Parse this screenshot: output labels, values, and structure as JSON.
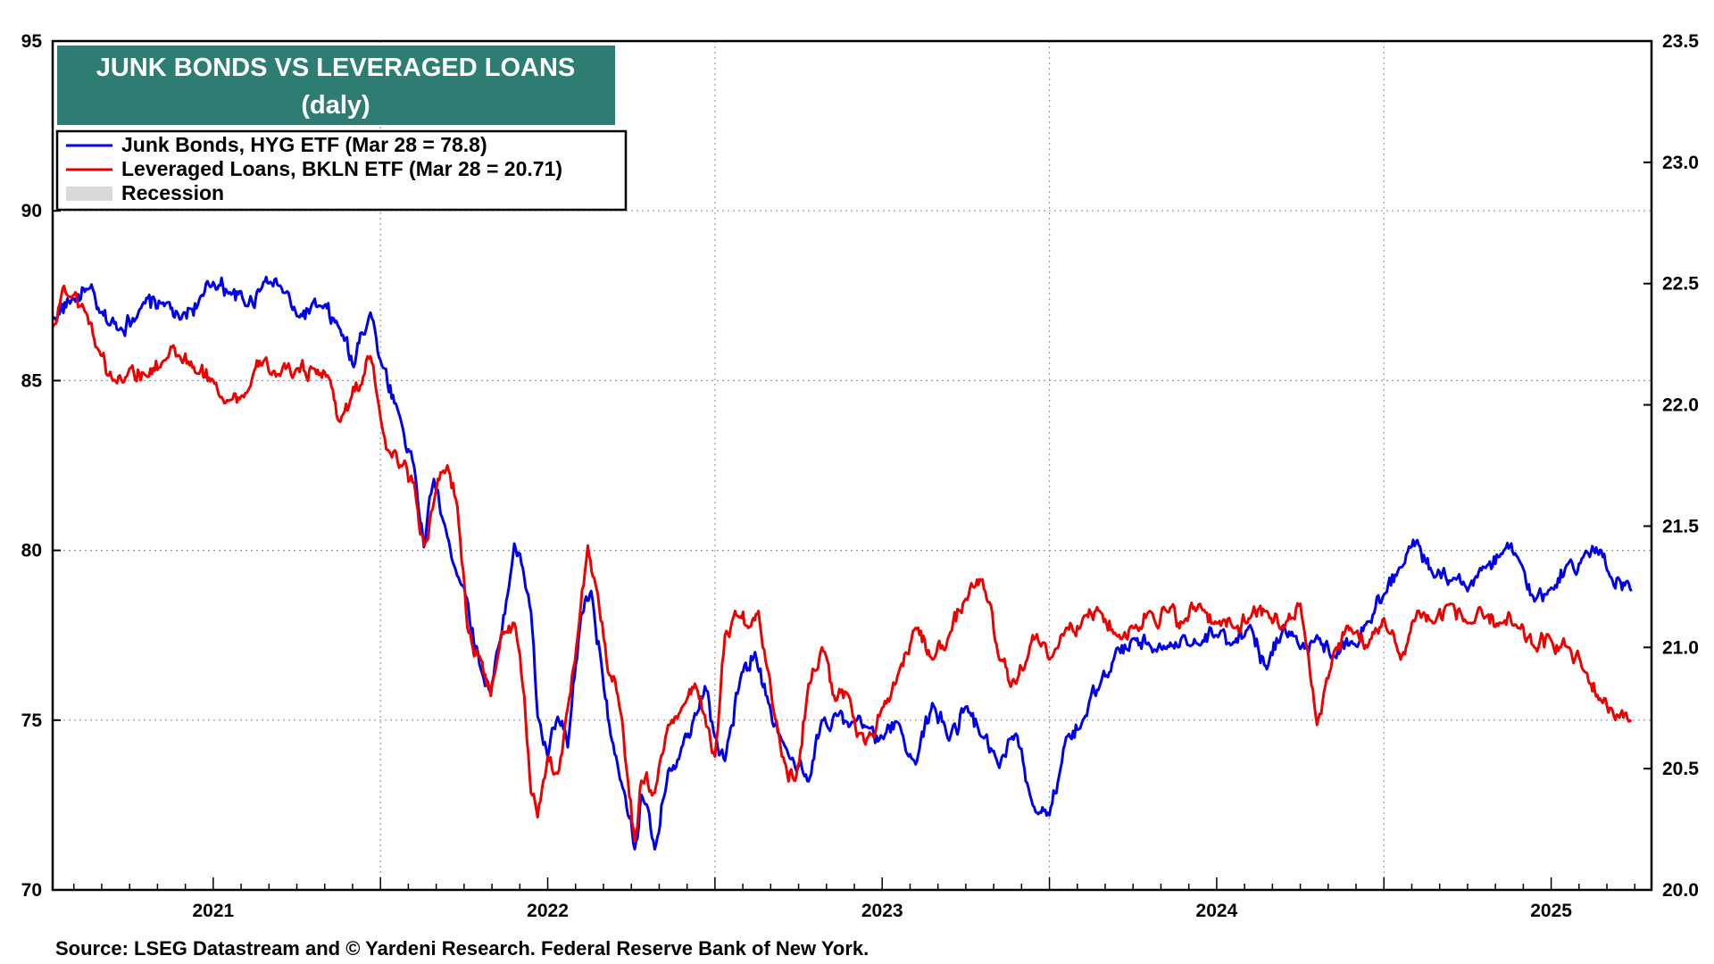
{
  "chart_data": {
    "type": "line",
    "title": "JUNK BONDS VS LEVERAGED LOANS",
    "subtitle": "(daly)",
    "source": "Source: LSEG Datastream and © Yardeni Research. Federal Reserve Bank of New York.",
    "x_range": [
      2020.52,
      2025.3
    ],
    "x_ticks": [
      {
        "label": "2021",
        "value": 2021.0
      },
      {
        "label": "2022",
        "value": 2022.0
      },
      {
        "label": "2023",
        "value": 2023.0
      },
      {
        "label": "2024",
        "value": 2024.0
      },
      {
        "label": "2025",
        "value": 2025.0
      }
    ],
    "y_left": {
      "range": [
        70,
        95
      ],
      "ticks": [
        "70",
        "75",
        "80",
        "85",
        "90",
        "95"
      ]
    },
    "y_right": {
      "range": [
        20.0,
        23.5
      ],
      "ticks": [
        "20.0",
        "20.5",
        "21.0",
        "21.5",
        "22.0",
        "22.5",
        "23.0",
        "23.5"
      ]
    },
    "grid": true,
    "legend_position": "top-left",
    "legend": [
      {
        "label": "Junk Bonds, HYG ETF (Mar 28 = 78.8)",
        "color": "#0000ee",
        "kind": "line"
      },
      {
        "label": "Leveraged Loans, BKLN ETF (Mar 28 = 20.71)",
        "color": "#ee0000",
        "kind": "line"
      },
      {
        "label": "Recession",
        "color": "#d9d9d9",
        "kind": "box"
      }
    ],
    "series": [
      {
        "name": "Junk Bonds, HYG ETF",
        "axis": "left",
        "color": "#0000ee",
        "x": [
          2020.52,
          2020.58,
          2020.62,
          2020.66,
          2020.72,
          2020.78,
          2020.85,
          2020.9,
          2020.97,
          2021.0,
          2021.05,
          2021.1,
          2021.15,
          2021.2,
          2021.25,
          2021.32,
          2021.38,
          2021.42,
          2021.44,
          2021.47,
          2021.5,
          2021.55,
          2021.6,
          2021.63,
          2021.66,
          2021.7,
          2021.75,
          2021.8,
          2021.83,
          2021.86,
          2021.9,
          2021.93,
          2021.95,
          2021.97,
          2022.0,
          2022.03,
          2022.06,
          2022.1,
          2022.13,
          2022.16,
          2022.2,
          2022.24,
          2022.26,
          2022.28,
          2022.32,
          2022.36,
          2022.4,
          2022.44,
          2022.47,
          2022.5,
          2022.53,
          2022.58,
          2022.62,
          2022.66,
          2022.7,
          2022.74,
          2022.78,
          2022.82,
          2022.86,
          2022.9,
          2022.95,
          2023.0,
          2023.05,
          2023.1,
          2023.15,
          2023.2,
          2023.25,
          2023.3,
          2023.35,
          2023.4,
          2023.45,
          2023.5,
          2023.55,
          2023.6,
          2023.65,
          2023.7,
          2023.75,
          2023.8,
          2023.85,
          2023.9,
          2023.95,
          2024.0,
          2024.05,
          2024.1,
          2024.15,
          2024.2,
          2024.25,
          2024.3,
          2024.35,
          2024.4,
          2024.45,
          2024.5,
          2024.55,
          2024.6,
          2024.65,
          2024.7,
          2024.75,
          2024.8,
          2024.85,
          2024.9,
          2024.95,
          2025.0,
          2025.05,
          2025.1,
          2025.15,
          2025.18,
          2025.2,
          2025.24
        ],
        "y": [
          86.8,
          87.4,
          87.7,
          87.0,
          86.5,
          87.1,
          87.3,
          86.8,
          87.5,
          87.9,
          87.6,
          87.2,
          87.9,
          87.8,
          86.9,
          87.2,
          86.5,
          85.4,
          86.4,
          87.0,
          85.6,
          84.2,
          82.5,
          80.1,
          82.1,
          80.4,
          78.9,
          76.5,
          75.9,
          77.4,
          80.2,
          79.2,
          78.2,
          75.1,
          73.9,
          75.1,
          74.2,
          78.1,
          78.8,
          76.7,
          74.0,
          72.2,
          71.2,
          72.8,
          71.2,
          73.5,
          74.2,
          75.2,
          76.0,
          74.5,
          73.8,
          76.4,
          77.0,
          75.5,
          74.4,
          73.6,
          73.2,
          75.0,
          75.2,
          74.8,
          74.8,
          74.5,
          74.9,
          73.7,
          75.5,
          74.4,
          75.4,
          74.5,
          73.6,
          74.6,
          72.5,
          72.2,
          74.5,
          75.0,
          76.0,
          77.1,
          77.4,
          77.2,
          77.1,
          77.5,
          77.2,
          77.5,
          77.3,
          77.8,
          76.5,
          77.8,
          77.1,
          77.5,
          76.9,
          77.3,
          77.9,
          78.7,
          79.5,
          80.3,
          79.2,
          79.1,
          78.8,
          79.5,
          79.9,
          79.8,
          78.5,
          78.9,
          79.6,
          79.9,
          80.0,
          79.2,
          79.2,
          78.8
        ]
      },
      {
        "name": "Leveraged Loans, BKLN ETF",
        "axis": "right",
        "color": "#ee0000",
        "x": [
          2020.52,
          2020.55,
          2020.58,
          2020.62,
          2020.66,
          2020.7,
          2020.75,
          2020.8,
          2020.85,
          2020.9,
          2020.95,
          2021.0,
          2021.05,
          2021.1,
          2021.15,
          2021.2,
          2021.25,
          2021.3,
          2021.35,
          2021.38,
          2021.41,
          2021.44,
          2021.47,
          2021.5,
          2021.53,
          2021.56,
          2021.6,
          2021.63,
          2021.66,
          2021.7,
          2021.73,
          2021.76,
          2021.8,
          2021.83,
          2021.86,
          2021.9,
          2021.93,
          2021.95,
          2021.97,
          2022.0,
          2022.03,
          2022.06,
          2022.09,
          2022.12,
          2022.15,
          2022.18,
          2022.21,
          2022.24,
          2022.26,
          2022.28,
          2022.32,
          2022.36,
          2022.4,
          2022.44,
          2022.47,
          2022.5,
          2022.53,
          2022.56,
          2022.6,
          2022.63,
          2022.66,
          2022.7,
          2022.74,
          2022.78,
          2022.82,
          2022.86,
          2022.9,
          2022.95,
          2023.0,
          2023.05,
          2023.1,
          2023.15,
          2023.2,
          2023.25,
          2023.3,
          2023.35,
          2023.4,
          2023.45,
          2023.5,
          2023.55,
          2023.6,
          2023.65,
          2023.7,
          2023.75,
          2023.8,
          2023.85,
          2023.9,
          2023.95,
          2024.0,
          2024.05,
          2024.1,
          2024.15,
          2024.2,
          2024.25,
          2024.3,
          2024.35,
          2024.4,
          2024.45,
          2024.5,
          2024.55,
          2024.6,
          2024.65,
          2024.7,
          2024.75,
          2024.8,
          2024.85,
          2024.9,
          2024.95,
          2025.0,
          2025.05,
          2025.1,
          2025.15,
          2025.18,
          2025.2,
          2025.24
        ],
        "y": [
          22.32,
          22.48,
          22.45,
          22.38,
          22.22,
          22.1,
          22.15,
          22.12,
          22.18,
          22.2,
          22.13,
          22.1,
          22.02,
          22.05,
          22.18,
          22.12,
          22.15,
          22.15,
          22.1,
          21.93,
          22.02,
          22.08,
          22.2,
          21.95,
          21.8,
          21.75,
          21.68,
          21.42,
          21.6,
          21.75,
          21.58,
          21.08,
          20.95,
          20.8,
          21.05,
          21.1,
          20.8,
          20.4,
          20.3,
          20.55,
          20.48,
          20.75,
          21.05,
          21.42,
          21.22,
          20.9,
          20.8,
          20.45,
          20.2,
          20.45,
          20.4,
          20.68,
          20.75,
          20.85,
          20.72,
          20.55,
          21.05,
          21.15,
          21.08,
          21.15,
          20.9,
          20.55,
          20.45,
          20.85,
          21.0,
          20.78,
          20.8,
          20.6,
          20.75,
          20.9,
          21.08,
          20.95,
          21.05,
          21.2,
          21.28,
          20.95,
          20.85,
          21.05,
          20.95,
          21.08,
          21.12,
          21.15,
          21.05,
          21.08,
          21.15,
          21.15,
          21.1,
          21.18,
          21.1,
          21.08,
          21.12,
          21.15,
          21.08,
          21.18,
          20.68,
          20.98,
          21.08,
          21.0,
          21.12,
          20.95,
          21.15,
          21.1,
          21.18,
          21.1,
          21.12,
          21.1,
          21.08,
          21.0,
          21.03,
          21.0,
          20.9,
          20.78,
          20.75,
          20.72,
          20.7
        ]
      }
    ]
  }
}
